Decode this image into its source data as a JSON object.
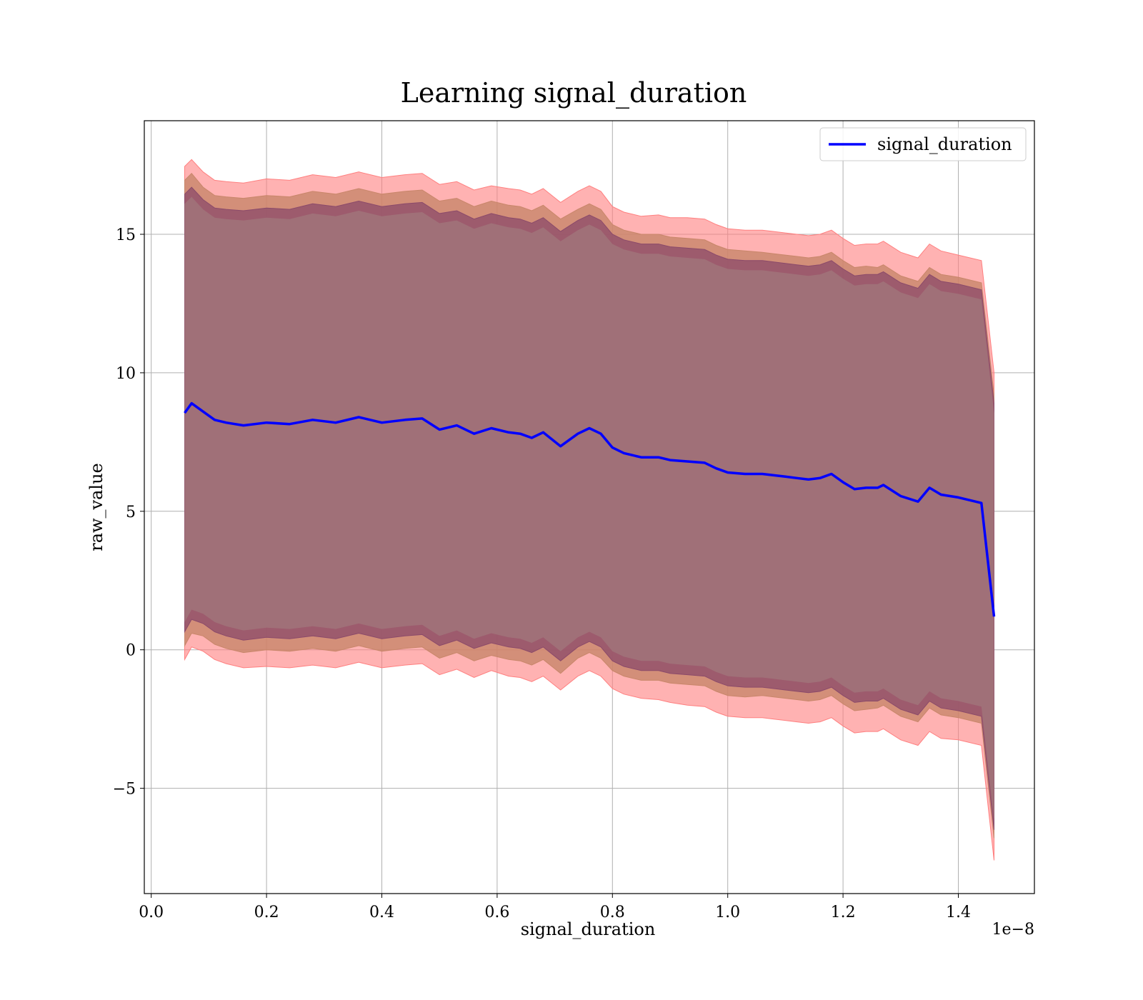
{
  "chart_data": {
    "type": "line",
    "title": "Learning signal_duration",
    "xlabel": "signal_duration",
    "ylabel": "raw_value",
    "x_offset_label": "1e−8",
    "xlim": [
      -0.012,
      1.532
    ],
    "ylim": [
      -8.8,
      19.1
    ],
    "x_ticks": [
      0.0,
      0.2,
      0.4,
      0.6,
      0.8,
      1.0,
      1.2,
      1.4
    ],
    "x_tick_labels": [
      "0.0",
      "0.2",
      "0.4",
      "0.6",
      "0.8",
      "1.0",
      "1.2",
      "1.4"
    ],
    "y_ticks": [
      -5,
      0,
      5,
      10,
      15
    ],
    "y_tick_labels": [
      "−5",
      "0",
      "5",
      "10",
      "15"
    ],
    "grid": true,
    "legend": {
      "position": "top-right",
      "entries": [
        "signal_duration"
      ]
    },
    "colors": {
      "line": "#0000ff",
      "band_outer": "#ff7f7f",
      "band_middle": "#c8866a",
      "band_inner": "#8b4a6a",
      "band_core": "#a07078"
    },
    "x": [
      0.058,
      0.07,
      0.09,
      0.11,
      0.13,
      0.16,
      0.2,
      0.24,
      0.28,
      0.32,
      0.36,
      0.4,
      0.44,
      0.47,
      0.5,
      0.53,
      0.56,
      0.59,
      0.62,
      0.64,
      0.66,
      0.68,
      0.71,
      0.74,
      0.76,
      0.78,
      0.8,
      0.82,
      0.85,
      0.88,
      0.9,
      0.93,
      0.96,
      0.98,
      1.0,
      1.03,
      1.06,
      1.08,
      1.1,
      1.12,
      1.14,
      1.16,
      1.18,
      1.2,
      1.22,
      1.24,
      1.26,
      1.27,
      1.3,
      1.33,
      1.35,
      1.37,
      1.4,
      1.44,
      1.462
    ],
    "series": [
      {
        "name": "signal_duration",
        "values": [
          8.55,
          8.9,
          8.6,
          8.3,
          8.2,
          8.1,
          8.2,
          8.15,
          8.3,
          8.2,
          8.4,
          8.2,
          8.3,
          8.35,
          7.95,
          8.1,
          7.8,
          8.0,
          7.85,
          7.8,
          7.65,
          7.85,
          7.35,
          7.8,
          8.0,
          7.8,
          7.3,
          7.1,
          6.95,
          6.95,
          6.85,
          6.8,
          6.75,
          6.55,
          6.4,
          6.35,
          6.35,
          6.3,
          6.25,
          6.2,
          6.15,
          6.2,
          6.35,
          6.05,
          5.8,
          5.85,
          5.85,
          5.95,
          5.55,
          5.35,
          5.85,
          5.6,
          5.5,
          5.3,
          1.2
        ]
      }
    ],
    "band_outer_width": [
      8.9,
      8.8,
      8.65,
      8.65,
      8.7,
      8.75,
      8.8,
      8.8,
      8.85,
      8.85,
      8.85,
      8.85,
      8.85,
      8.85,
      8.85,
      8.8,
      8.8,
      8.75,
      8.8,
      8.8,
      8.8,
      8.8,
      8.8,
      8.75,
      8.75,
      8.75,
      8.7,
      8.7,
      8.7,
      8.75,
      8.75,
      8.8,
      8.8,
      8.8,
      8.8,
      8.8,
      8.8,
      8.8,
      8.8,
      8.8,
      8.8,
      8.8,
      8.8,
      8.8,
      8.8,
      8.8,
      8.8,
      8.8,
      8.8,
      8.8,
      8.8,
      8.8,
      8.75,
      8.75,
      8.8
    ],
    "band_middle_width": [
      8.4,
      8.3,
      8.1,
      8.1,
      8.15,
      8.2,
      8.2,
      8.2,
      8.25,
      8.25,
      8.25,
      8.25,
      8.25,
      8.25,
      8.25,
      8.2,
      8.2,
      8.2,
      8.2,
      8.2,
      8.2,
      8.2,
      8.2,
      8.1,
      8.1,
      8.1,
      8.05,
      8.05,
      8.05,
      8.05,
      8.05,
      8.05,
      8.05,
      8.05,
      8.05,
      8.05,
      8.0,
      8.0,
      8.0,
      8.0,
      8.0,
      8.0,
      8.0,
      8.0,
      8.0,
      8.0,
      7.95,
      7.95,
      7.95,
      7.95,
      7.95,
      7.95,
      7.95,
      7.95,
      8.0
    ],
    "band_inner_width": [
      7.9,
      7.8,
      7.65,
      7.65,
      7.7,
      7.75,
      7.75,
      7.75,
      7.8,
      7.8,
      7.8,
      7.8,
      7.8,
      7.8,
      7.8,
      7.75,
      7.75,
      7.75,
      7.75,
      7.75,
      7.75,
      7.75,
      7.75,
      7.7,
      7.7,
      7.7,
      7.7,
      7.7,
      7.7,
      7.7,
      7.7,
      7.7,
      7.7,
      7.7,
      7.7,
      7.7,
      7.7,
      7.7,
      7.7,
      7.7,
      7.7,
      7.7,
      7.7,
      7.7,
      7.7,
      7.7,
      7.7,
      7.7,
      7.7,
      7.7,
      7.7,
      7.7,
      7.7,
      7.7,
      7.7
    ]
  }
}
